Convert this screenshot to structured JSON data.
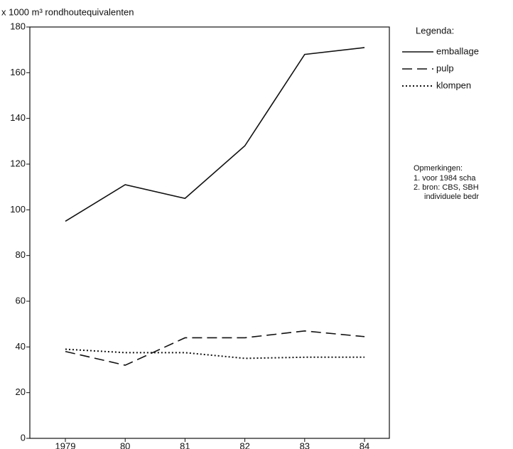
{
  "chart_data": {
    "type": "line",
    "y_label": "x 1000 m³ rondhoutequivalenten",
    "categories": [
      "1979",
      "80",
      "81",
      "82",
      "83",
      "84"
    ],
    "series": [
      {
        "name": "emballage",
        "color": "#111111",
        "dash": "solid",
        "values": [
          95,
          111,
          105,
          128,
          168,
          171
        ]
      },
      {
        "name": "pulp",
        "color": "#111111",
        "dash": "dashed",
        "values": [
          38,
          32,
          44,
          44,
          47,
          44.5
        ]
      },
      {
        "name": "klompen",
        "color": "#111111",
        "dash": "dotted",
        "values": [
          39,
          37.5,
          37.5,
          35,
          35.5,
          35.5
        ]
      }
    ],
    "ylim": [
      0,
      180
    ],
    "yticks": [
      0,
      20,
      40,
      60,
      80,
      100,
      120,
      140,
      160,
      180
    ],
    "legend_title": "Legenda:",
    "notes_title": "Opmerkingen:",
    "notes": [
      "1.  voor 1984 scha",
      "2.  bron: CBS, SBH",
      "individuele bedr"
    ]
  }
}
